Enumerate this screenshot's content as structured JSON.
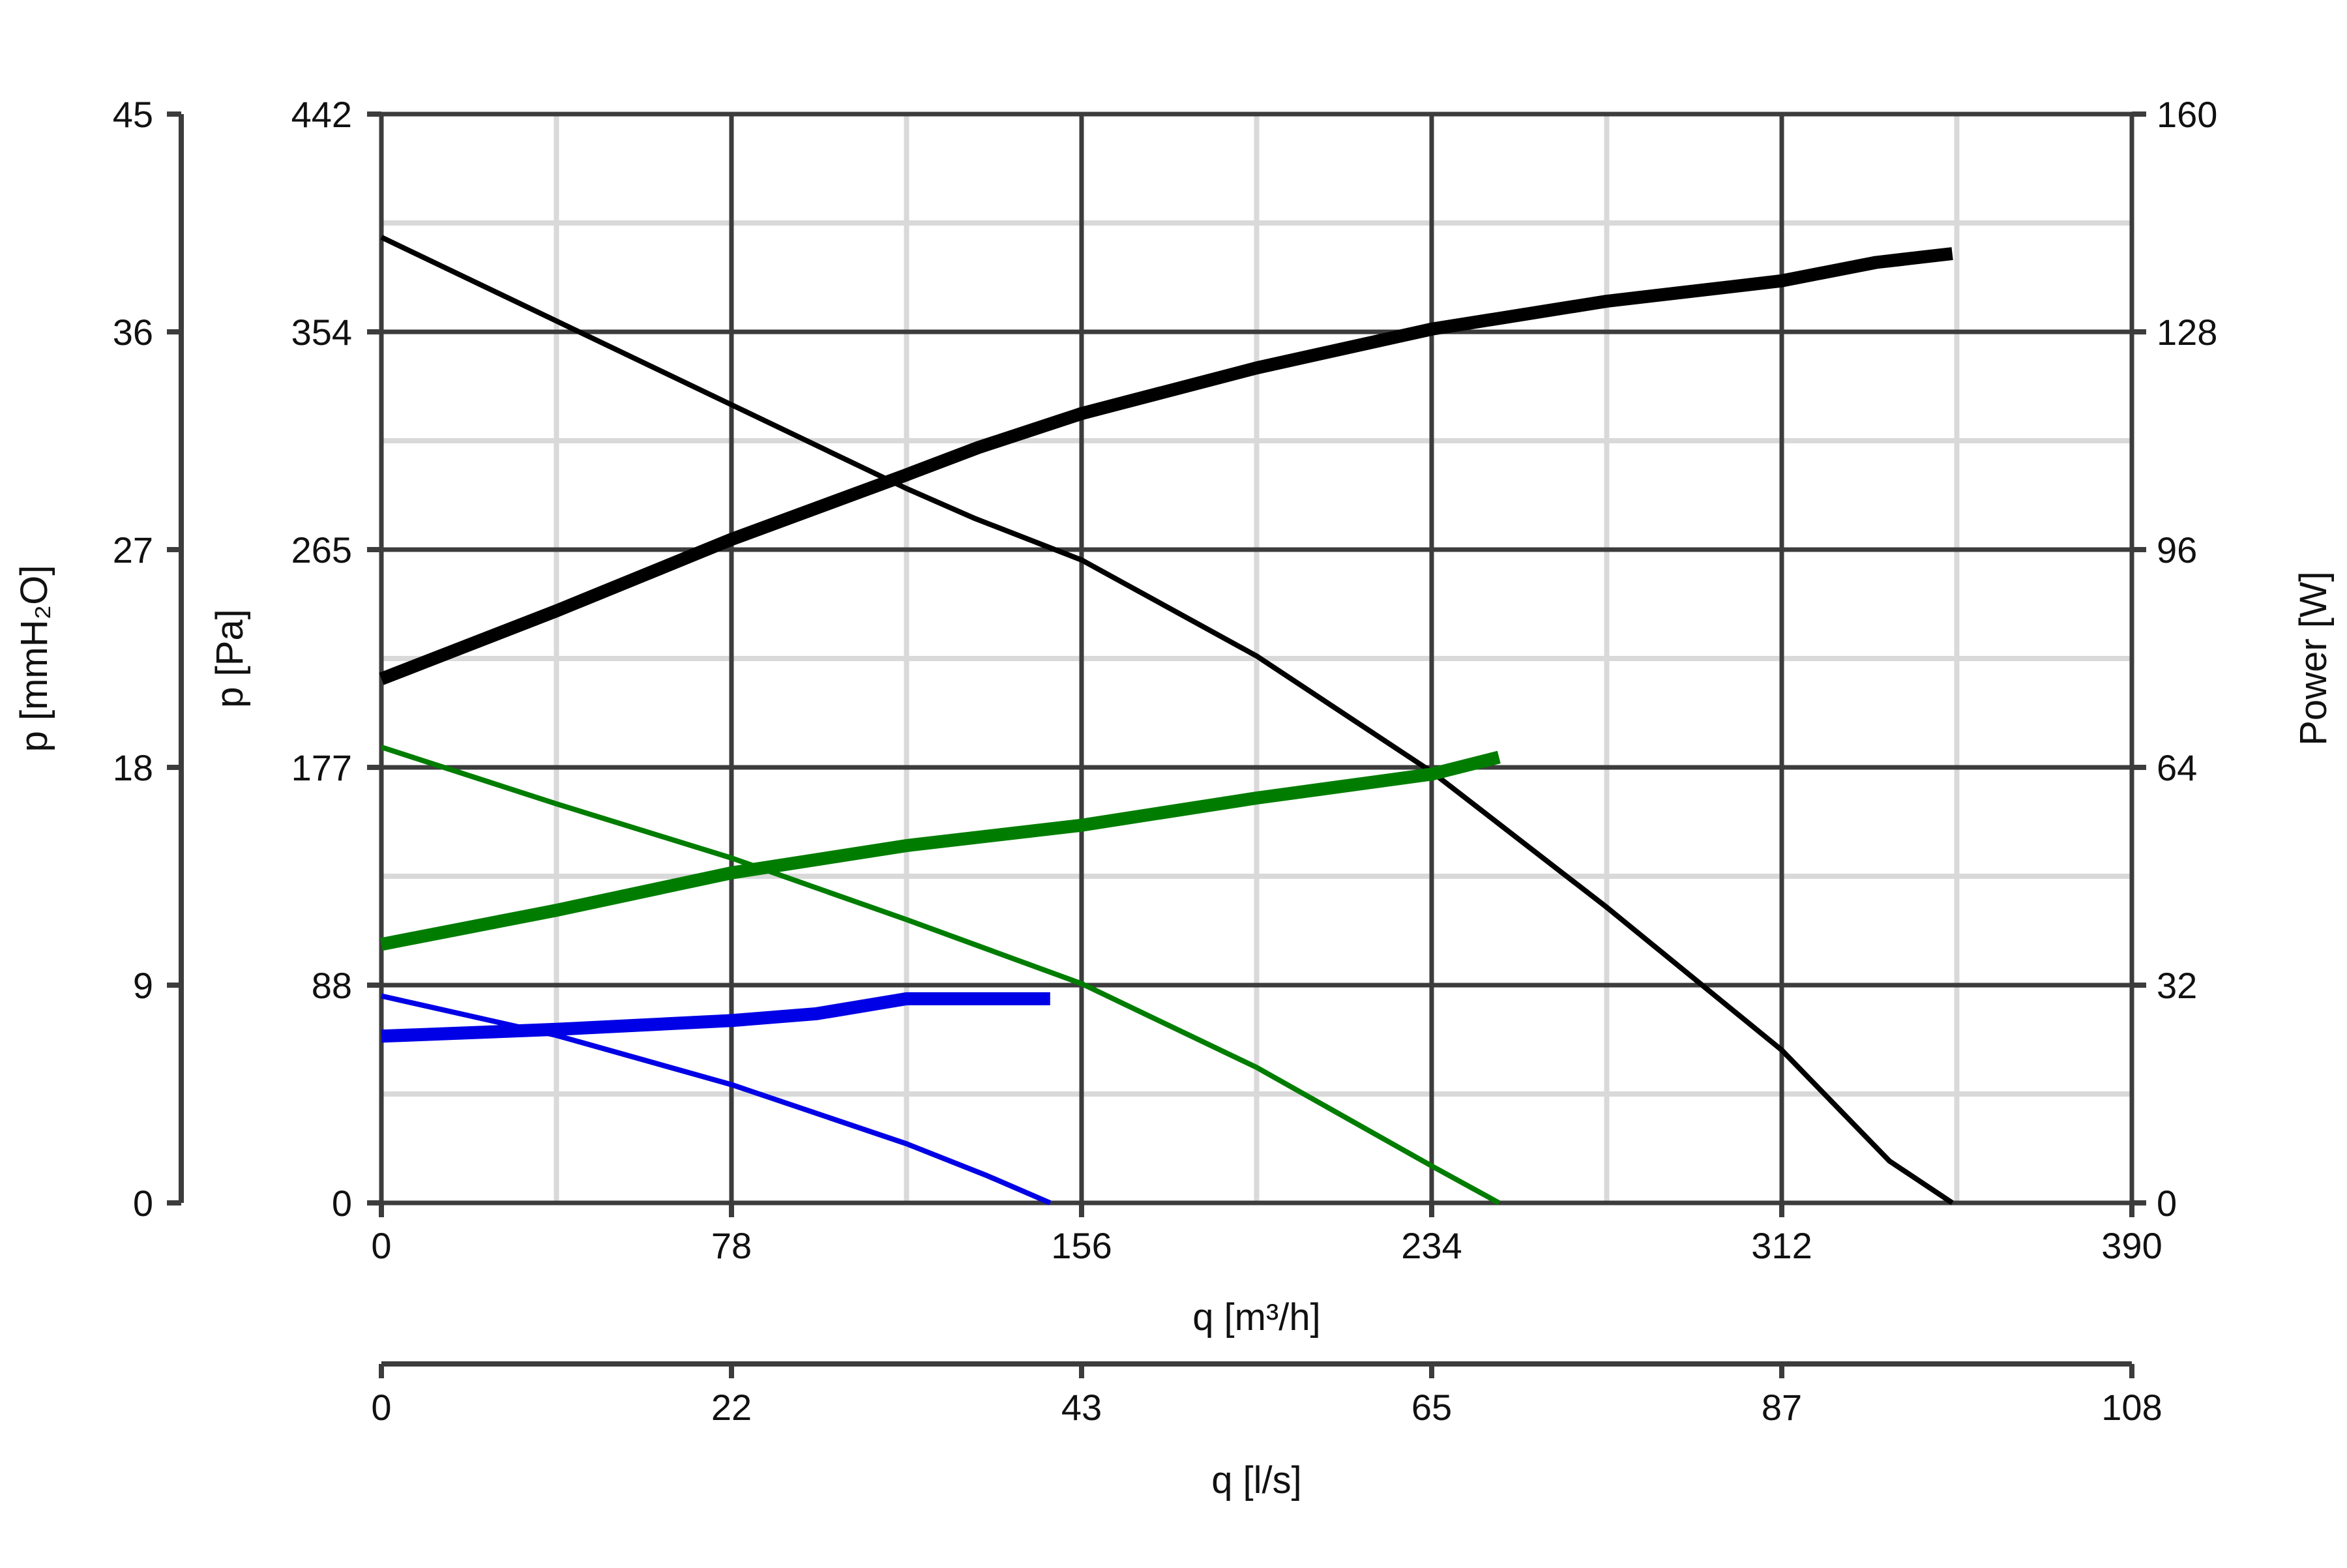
{
  "chart_data": {
    "type": "line",
    "title": "",
    "x_axes": {
      "primary": {
        "label": "q [m³/h]",
        "ticks": [
          "0",
          "78",
          "156",
          "234",
          "312",
          "390"
        ],
        "range": [
          0,
          390
        ]
      },
      "secondary": {
        "label": "q [l/s]",
        "ticks": [
          "0",
          "22",
          "43",
          "65",
          "87",
          "108"
        ],
        "range": [
          0,
          108
        ]
      }
    },
    "y_axes": {
      "left_outer": {
        "label": "p [mmH₂O]",
        "ticks": [
          "0",
          "9",
          "18",
          "27",
          "36",
          "45"
        ],
        "range": [
          0,
          45
        ]
      },
      "left_inner": {
        "label": "p [Pa]",
        "ticks": [
          "0",
          "88",
          "177",
          "265",
          "354",
          "442"
        ],
        "range": [
          0,
          442
        ]
      },
      "right": {
        "label": "Power [W]",
        "ticks": [
          "0",
          "32",
          "64",
          "96",
          "128",
          "160"
        ],
        "range": [
          0,
          160
        ]
      }
    },
    "grid": true,
    "legend": "none",
    "series": [
      {
        "axis": "pressure",
        "color": "#000000",
        "points": [
          [
            0,
            392
          ],
          [
            78,
            324
          ],
          [
            117,
            290
          ],
          [
            132,
            278
          ],
          [
            156,
            261
          ],
          [
            195,
            222
          ],
          [
            234,
            175
          ],
          [
            273,
            120
          ],
          [
            312,
            62
          ],
          [
            336,
            17
          ],
          [
            350,
            0
          ]
        ]
      },
      {
        "axis": "power",
        "color": "#000000",
        "points": [
          [
            0,
            77
          ],
          [
            39,
            87
          ],
          [
            78,
            97.5
          ],
          [
            117,
            107
          ],
          [
            133,
            111
          ],
          [
            156,
            116
          ],
          [
            195,
            122.7
          ],
          [
            234,
            128.4
          ],
          [
            273,
            132.5
          ],
          [
            312,
            135.5
          ],
          [
            333,
            138.2
          ],
          [
            350,
            139.5
          ]
        ]
      },
      {
        "axis": "pressure",
        "color": "#007d00",
        "points": [
          [
            0,
            185
          ],
          [
            39,
            162
          ],
          [
            78,
            140
          ],
          [
            117,
            115
          ],
          [
            156,
            89
          ],
          [
            195,
            55
          ],
          [
            234,
            15
          ],
          [
            249,
            0
          ]
        ]
      },
      {
        "axis": "power",
        "color": "#007d00",
        "points": [
          [
            0,
            38
          ],
          [
            39,
            43
          ],
          [
            78,
            48.5
          ],
          [
            117,
            52.5
          ],
          [
            156,
            55.5
          ],
          [
            195,
            59.5
          ],
          [
            234,
            63
          ],
          [
            249,
            65.5
          ]
        ]
      },
      {
        "axis": "pressure",
        "color": "#0000e6",
        "points": [
          [
            0,
            84
          ],
          [
            39,
            68
          ],
          [
            78,
            48
          ],
          [
            117,
            24
          ],
          [
            135,
            11
          ],
          [
            149,
            0
          ]
        ]
      },
      {
        "axis": "power",
        "color": "#0000e6",
        "points": [
          [
            0,
            24.5
          ],
          [
            39,
            25.5
          ],
          [
            78,
            26.8
          ],
          [
            97,
            27.8
          ],
          [
            117,
            30
          ],
          [
            135,
            30
          ],
          [
            149,
            30
          ]
        ]
      }
    ]
  }
}
